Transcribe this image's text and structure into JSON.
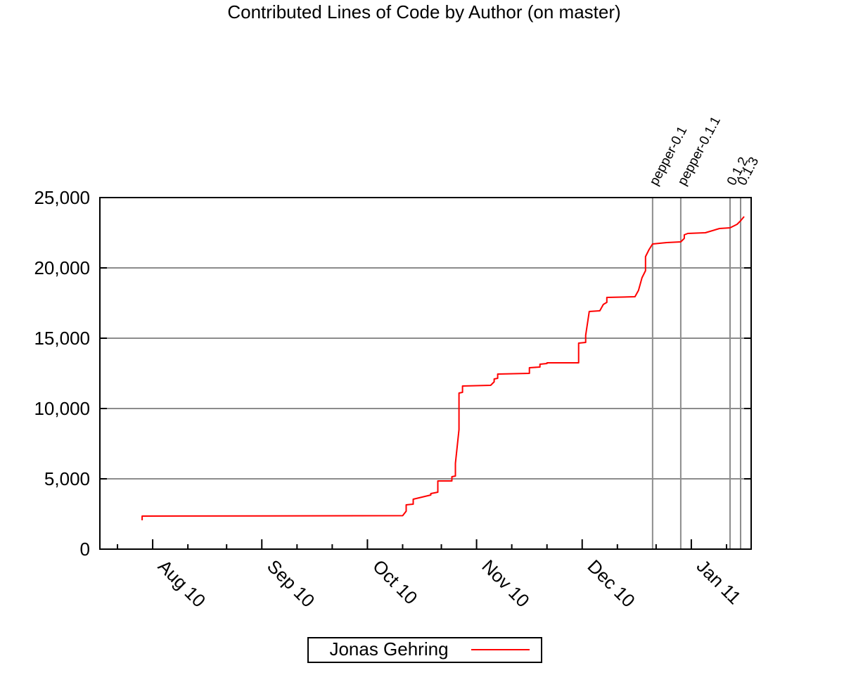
{
  "chart_data": {
    "type": "line",
    "title": "Contributed Lines of Code by Author (on master)",
    "xlabel": "",
    "ylabel": "",
    "xlim": [
      "2010-07-26",
      "2011-01-27"
    ],
    "ylim": [
      0,
      25000
    ],
    "grid": true,
    "legend_position": "bottom-center",
    "y_ticks": [
      {
        "value": 0,
        "label": "0"
      },
      {
        "value": 5000,
        "label": "5,000"
      },
      {
        "value": 10000,
        "label": "10,000"
      },
      {
        "value": 15000,
        "label": "15,000"
      },
      {
        "value": 20000,
        "label": "20,000"
      },
      {
        "value": 25000,
        "label": "25,000"
      }
    ],
    "x_ticks": [
      {
        "date": "2010-08-10",
        "label": "Aug 10"
      },
      {
        "date": "2010-09-10",
        "label": "Sep 10"
      },
      {
        "date": "2010-10-10",
        "label": "Oct 10"
      },
      {
        "date": "2010-11-10",
        "label": "Nov 10"
      },
      {
        "date": "2010-12-10",
        "label": "Dec 10"
      },
      {
        "date": "2011-01-10",
        "label": "Jan 11"
      }
    ],
    "x_minor_ticks": [
      "2010-07-31",
      "2010-08-20",
      "2010-08-31",
      "2010-09-20",
      "2010-09-30",
      "2010-10-20",
      "2010-10-31",
      "2010-11-20",
      "2010-11-30",
      "2010-12-20",
      "2010-12-31",
      "2011-01-20"
    ],
    "tags": [
      {
        "date": "2010-12-30",
        "label": "pepper-0.1"
      },
      {
        "date": "2011-01-07",
        "label": "pepper-0.1.1"
      },
      {
        "date": "2011-01-21",
        "label": "0.1.2"
      },
      {
        "date": "2011-01-24",
        "label": "0.1.3"
      }
    ],
    "series": [
      {
        "name": "Jonas Gehring",
        "color": "#ff0000",
        "points": [
          [
            "2010-08-07",
            2050
          ],
          [
            "2010-08-07",
            2350
          ],
          [
            "2010-10-20",
            2380
          ],
          [
            "2010-10-21",
            2700
          ],
          [
            "2010-10-21",
            3150
          ],
          [
            "2010-10-23",
            3200
          ],
          [
            "2010-10-23",
            3550
          ],
          [
            "2010-10-28",
            3850
          ],
          [
            "2010-10-28",
            3950
          ],
          [
            "2010-10-30",
            4050
          ],
          [
            "2010-10-30",
            4850
          ],
          [
            "2010-11-03",
            4850
          ],
          [
            "2010-11-03",
            5150
          ],
          [
            "2010-11-04",
            5200
          ],
          [
            "2010-11-04",
            6100
          ],
          [
            "2010-11-05",
            8500
          ],
          [
            "2010-11-05",
            11100
          ],
          [
            "2010-11-06",
            11150
          ],
          [
            "2010-11-06",
            11600
          ],
          [
            "2010-11-14",
            11650
          ],
          [
            "2010-11-15",
            11900
          ],
          [
            "2010-11-15",
            12100
          ],
          [
            "2010-11-16",
            12150
          ],
          [
            "2010-11-16",
            12450
          ],
          [
            "2010-11-25",
            12500
          ],
          [
            "2010-11-25",
            12900
          ],
          [
            "2010-11-28",
            12950
          ],
          [
            "2010-11-28",
            13150
          ],
          [
            "2010-11-30",
            13200
          ],
          [
            "2010-11-30",
            13250
          ],
          [
            "2010-12-09",
            13250
          ],
          [
            "2010-12-09",
            14650
          ],
          [
            "2010-12-11",
            14700
          ],
          [
            "2010-12-11",
            15200
          ],
          [
            "2010-12-12",
            16900
          ],
          [
            "2010-12-15",
            16950
          ],
          [
            "2010-12-16",
            17400
          ],
          [
            "2010-12-17",
            17550
          ],
          [
            "2010-12-17",
            17900
          ],
          [
            "2010-12-25",
            17950
          ],
          [
            "2010-12-26",
            18400
          ],
          [
            "2010-12-27",
            19300
          ],
          [
            "2010-12-28",
            19800
          ],
          [
            "2010-12-28",
            20800
          ],
          [
            "2010-12-29",
            21300
          ],
          [
            "2010-12-30",
            21700
          ],
          [
            "2011-01-03",
            21800
          ],
          [
            "2011-01-07",
            21850
          ],
          [
            "2011-01-08",
            22100
          ],
          [
            "2011-01-08",
            22350
          ],
          [
            "2011-01-09",
            22450
          ],
          [
            "2011-01-14",
            22500
          ],
          [
            "2011-01-18",
            22800
          ],
          [
            "2011-01-21",
            22850
          ],
          [
            "2011-01-23",
            23100
          ],
          [
            "2011-01-24",
            23350
          ],
          [
            "2011-01-25",
            23650
          ]
        ]
      }
    ]
  }
}
